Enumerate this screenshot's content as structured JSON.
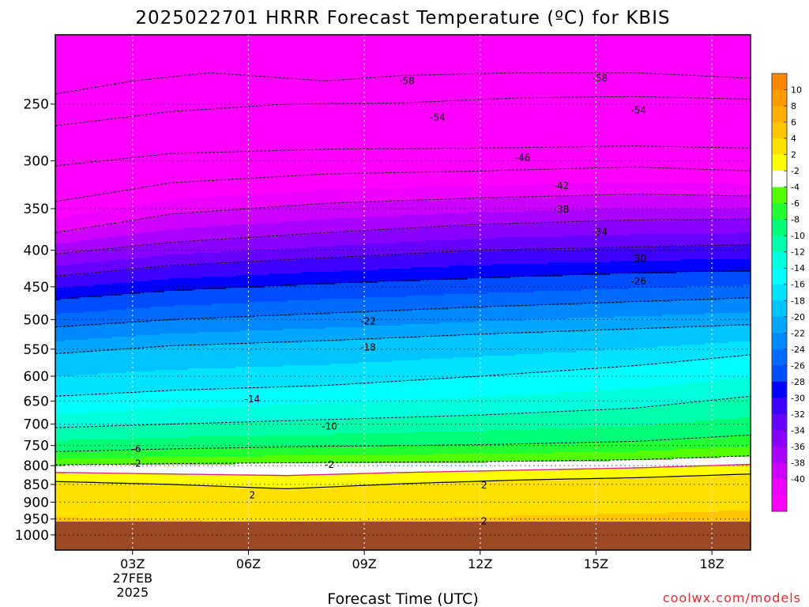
{
  "chart_data": {
    "type": "heatmap",
    "title": "2025022701 HRRR Forecast Temperature (ºC) for KBIS",
    "xlabel": "Forecast Time (UTC)",
    "ylabel": "",
    "credit": "coolwx.com/models",
    "x_ticks": [
      {
        "t": 3,
        "label": "03Z",
        "sub": [
          "27FEB",
          "2025"
        ]
      },
      {
        "t": 6,
        "label": "06Z",
        "sub": []
      },
      {
        "t": 9,
        "label": "09Z",
        "sub": []
      },
      {
        "t": 12,
        "label": "12Z",
        "sub": []
      },
      {
        "t": 15,
        "label": "15Z",
        "sub": []
      },
      {
        "t": 18,
        "label": "18Z",
        "sub": []
      }
    ],
    "xlim": [
      1,
      19
    ],
    "y_scale": "log",
    "ylim": [
      1050,
      200
    ],
    "y_ticks": [
      250,
      300,
      350,
      400,
      450,
      500,
      550,
      600,
      650,
      700,
      750,
      800,
      850,
      900,
      950,
      1000
    ],
    "ground_level_hpa": 958,
    "colorbar": {
      "labels": [
        "10",
        "8",
        "6",
        "4",
        "2",
        "-2",
        "-4",
        "-6",
        "-8",
        "-10",
        "-12",
        "-14",
        "-16",
        "-18",
        "-20",
        "-22",
        "-24",
        "-26",
        "-28",
        "-30",
        "-32",
        "-34",
        "-36",
        "-38",
        "-40"
      ],
      "colors": [
        "#ff8800",
        "#ff9a00",
        "#ffae00",
        "#ffc600",
        "#ffe000",
        "#ffff00",
        "#ffffff",
        "#55ff00",
        "#22ff33",
        "#00ff77",
        "#00ffaa",
        "#00ffdd",
        "#00ffff",
        "#00e2ff",
        "#00c4ff",
        "#00a6ff",
        "#0088ff",
        "#006aff",
        "#004cff",
        "#0000ff",
        "#3c00ff",
        "#6600ff",
        "#8800ff",
        "#aa00ff",
        "#cc00ff",
        "#ee00ff",
        "#ff00ff"
      ]
    },
    "series": [
      {
        "value": -58,
        "x": [
          1,
          3,
          5,
          8,
          10,
          13,
          16,
          19
        ],
        "y": [
          242,
          232,
          226,
          232,
          228,
          226,
          226,
          230
        ]
      },
      {
        "value": -54,
        "x": [
          1,
          4,
          7,
          10,
          13,
          16,
          19
        ],
        "y": [
          268,
          256,
          250,
          249,
          245,
          244,
          246
        ]
      },
      {
        "value": -46,
        "x": [
          1,
          4,
          8,
          12,
          16,
          19
        ],
        "y": [
          305,
          293,
          289,
          288,
          286,
          288
        ]
      },
      {
        "value": -42,
        "x": [
          1,
          4,
          8,
          12,
          16,
          19
        ],
        "y": [
          342,
          322,
          313,
          310,
          306,
          310
        ]
      },
      {
        "value": -38,
        "x": [
          1,
          4,
          8,
          12,
          16,
          19
        ],
        "y": [
          378,
          356,
          344,
          338,
          334,
          336
        ]
      },
      {
        "value": -34,
        "x": [
          1,
          4,
          8,
          12,
          16,
          19
        ],
        "y": [
          405,
          390,
          378,
          368,
          363,
          362
        ]
      },
      {
        "value": -30,
        "x": [
          1,
          4,
          8,
          12,
          16,
          19
        ],
        "y": [
          435,
          420,
          410,
          400,
          396,
          393
        ]
      },
      {
        "value": -26,
        "x": [
          1,
          4,
          8,
          12,
          16,
          19
        ],
        "y": [
          468,
          455,
          445,
          437,
          430,
          427
        ]
      },
      {
        "value": -22,
        "x": [
          1,
          4,
          8,
          12,
          16,
          19
        ],
        "y": [
          512,
          500,
          490,
          480,
          472,
          466
        ]
      },
      {
        "value": -18,
        "x": [
          1,
          4,
          8,
          12,
          16,
          19
        ],
        "y": [
          558,
          544,
          535,
          524,
          515,
          508
        ]
      },
      {
        "value": -14,
        "x": [
          1,
          4,
          8,
          12,
          16,
          19
        ],
        "y": [
          640,
          628,
          618,
          600,
          580,
          560
        ]
      },
      {
        "value": -10,
        "x": [
          1,
          4,
          8,
          12,
          16,
          19
        ],
        "y": [
          708,
          700,
          690,
          680,
          665,
          640
        ]
      },
      {
        "value": -6,
        "x": [
          1,
          4,
          8,
          12,
          16,
          19
        ],
        "y": [
          765,
          758,
          752,
          748,
          740,
          725
        ]
      },
      {
        "value": -2,
        "x": [
          1,
          4,
          8,
          12,
          16,
          19
        ],
        "y": [
          798,
          795,
          792,
          790,
          785,
          775
        ]
      },
      {
        "value": 2,
        "x": [
          1,
          4,
          7,
          10,
          13,
          16,
          19
        ],
        "y": [
          842,
          850,
          862,
          848,
          838,
          832,
          822
        ]
      },
      {
        "value": 0,
        "x": [
          1,
          4,
          7,
          10,
          13,
          16,
          19
        ],
        "y": [
          818,
          822,
          826,
          818,
          812,
          806,
          797
        ]
      }
    ],
    "contour_labels": [
      {
        "text": "-58",
        "t": 10.1,
        "p": 232
      },
      {
        "text": "-58",
        "t": 15.1,
        "p": 230
      },
      {
        "text": "-54",
        "t": 10.9,
        "p": 261
      },
      {
        "text": "-54",
        "t": 16.1,
        "p": 255
      },
      {
        "text": "-46",
        "t": 13.1,
        "p": 297
      },
      {
        "text": "-42",
        "t": 14.1,
        "p": 325
      },
      {
        "text": "-38",
        "t": 14.1,
        "p": 351
      },
      {
        "text": "-34",
        "t": 15.1,
        "p": 377
      },
      {
        "text": "-30",
        "t": 16.1,
        "p": 411
      },
      {
        "text": "-26",
        "t": 16.1,
        "p": 442
      },
      {
        "text": "-22",
        "t": 9.1,
        "p": 503
      },
      {
        "text": "-18",
        "t": 9.1,
        "p": 547
      },
      {
        "text": "-14",
        "t": 6.1,
        "p": 646
      },
      {
        "text": "-10",
        "t": 8.1,
        "p": 705
      },
      {
        "text": "-6",
        "t": 3.1,
        "p": 758
      },
      {
        "text": "-2",
        "t": 3.1,
        "p": 795
      },
      {
        "text": "-2",
        "t": 8.1,
        "p": 798
      },
      {
        "text": "2",
        "t": 6.1,
        "p": 880
      },
      {
        "text": "2",
        "t": 12.1,
        "p": 852
      },
      {
        "text": "2",
        "t": 12.1,
        "p": 957
      }
    ]
  }
}
